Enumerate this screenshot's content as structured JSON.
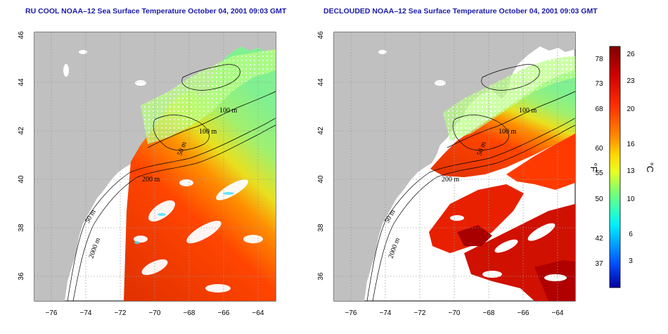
{
  "titles": {
    "left": "RU COOL NOAA–12 Sea Surface Temperature October 04, 2001 09:03 GMT",
    "right": "DECLOUDED NOAA–12 Sea Surface Temperature October 04, 2001 09:03 GMT"
  },
  "axes": {
    "lat_ticks": [
      "46",
      "44",
      "42",
      "40",
      "38",
      "36"
    ],
    "lon_ticks": [
      "−76",
      "−74",
      "−72",
      "−70",
      "−68",
      "−66",
      "−64"
    ]
  },
  "contours": {
    "left": [
      "100 m",
      "100 m",
      "50 m",
      "200 m",
      "50 m",
      "2000 m"
    ],
    "right": [
      "100 m",
      "100 m",
      "50 m",
      "200 m",
      "50 m",
      "2000 m"
    ]
  },
  "colorbar": {
    "fahrenheit_ticks": [
      "78",
      "73",
      "68",
      "60",
      "55",
      "50",
      "42",
      "37"
    ],
    "celsius_ticks": [
      "26",
      "23",
      "20",
      "16",
      "13",
      "10",
      "6",
      "3"
    ],
    "fahrenheit_unit": "°F",
    "celsius_unit": "°C",
    "colors": [
      "#7a0000",
      "#c00000",
      "#ff2000",
      "#ff6000",
      "#ffa000",
      "#ffe000",
      "#c0ff40",
      "#60ff90",
      "#00ffff",
      "#00a0ff",
      "#0040ff",
      "#0000a0"
    ]
  },
  "colors": {
    "land": "#c0c0c0",
    "water_no_data": "#ffffff",
    "title": "#1a1aa8"
  }
}
